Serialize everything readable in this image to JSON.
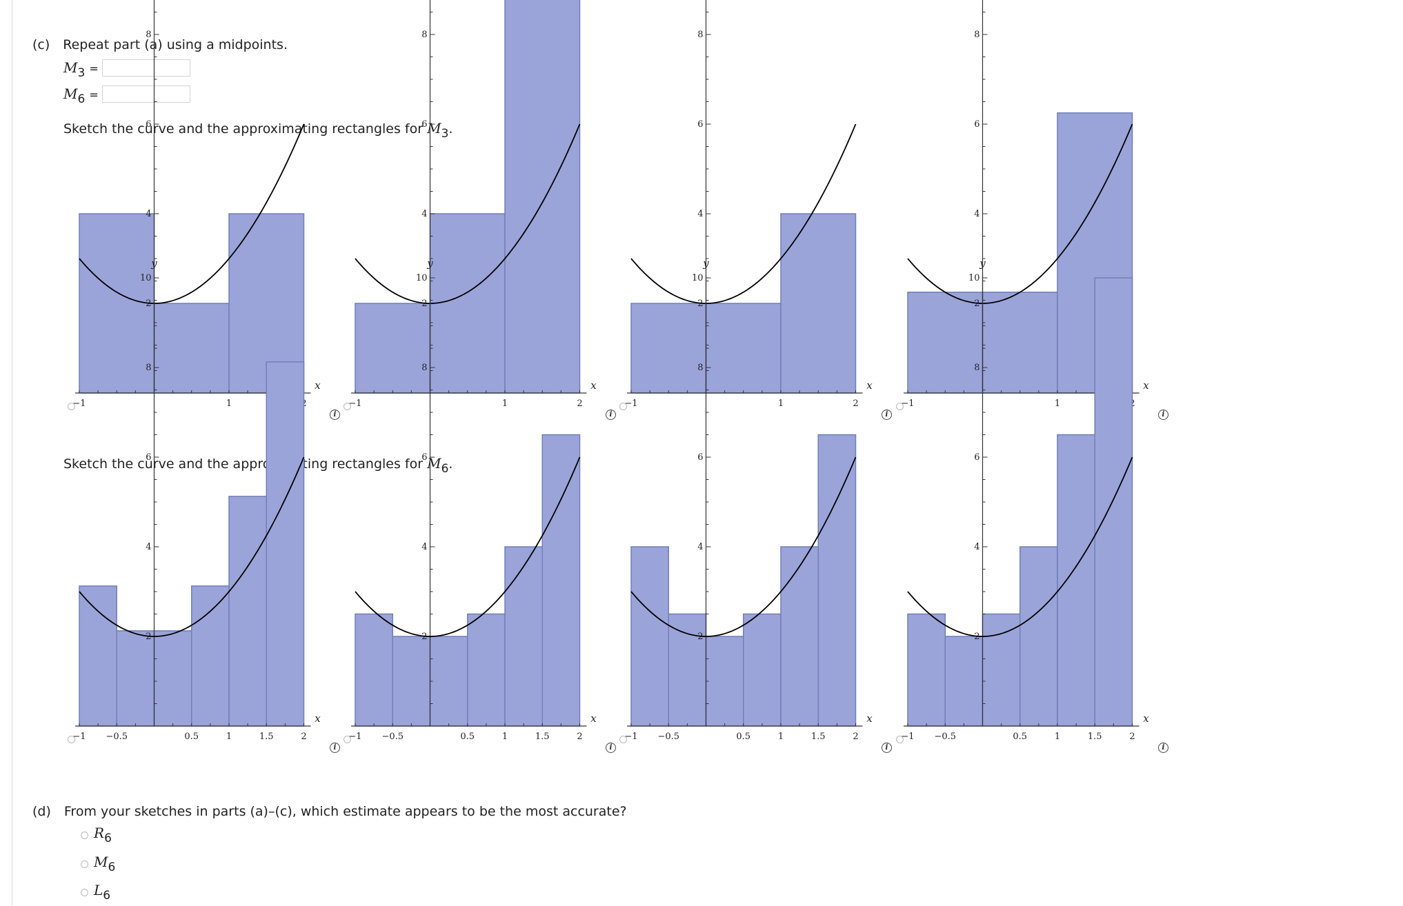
{
  "part_c": {
    "prompt": "(c) Repeat part (a) using a midpoints.",
    "m3_label": "M",
    "m3_sub": "3",
    "m3_value": "",
    "m6_label": "M",
    "m6_sub": "6",
    "m6_value": "",
    "equals": "=",
    "sketch_m3_prompt": "Sketch the curve and the approximating rectangles for ",
    "sketch_m3_var": "M",
    "sketch_m3_sub": "3",
    "sketch_m6_prompt": "Sketch the curve and the approximating rectangles for ",
    "sketch_m6_var": "M",
    "sketch_m6_sub": "6",
    "period": "."
  },
  "part_d": {
    "prompt": "(d) From your sketches in parts (a)–(c), which estimate appears to be the most accurate?",
    "options": [
      {
        "var": "R",
        "sub": "6"
      },
      {
        "var": "M",
        "sub": "6"
      },
      {
        "var": "L",
        "sub": "6"
      }
    ]
  },
  "chart_data": [
    {
      "type": "bar",
      "group": "M3",
      "option": 1,
      "x_range": [
        -1,
        2
      ],
      "y_range": [
        0,
        10
      ],
      "x_ticks": [
        "−1",
        "1",
        "2"
      ],
      "y_ticks": [
        "2",
        "4",
        "6",
        "8",
        "10"
      ],
      "xlabel": "x",
      "ylabel": "y",
      "curve": "x^2+2",
      "rect_width": 1,
      "rect_left_x": [
        -1,
        0,
        1
      ],
      "rect_heights": [
        4,
        2,
        4
      ]
    },
    {
      "type": "bar",
      "group": "M3",
      "option": 2,
      "x_range": [
        -1,
        2
      ],
      "y_range": [
        0,
        10
      ],
      "x_ticks": [
        "−1",
        "1",
        "2"
      ],
      "y_ticks": [
        "2",
        "4",
        "6",
        "8",
        "10"
      ],
      "xlabel": "x",
      "ylabel": "y",
      "curve": "x^2+2",
      "rect_width": 1,
      "rect_left_x": [
        -1,
        0,
        1
      ],
      "rect_heights": [
        2,
        4,
        10
      ]
    },
    {
      "type": "bar",
      "group": "M3",
      "option": 3,
      "x_range": [
        -1,
        2
      ],
      "y_range": [
        0,
        10
      ],
      "x_ticks": [
        "−1",
        "1",
        "2"
      ],
      "y_ticks": [
        "2",
        "4",
        "6",
        "8",
        "10"
      ],
      "xlabel": "x",
      "ylabel": "y",
      "curve": "x^2+2",
      "rect_width": 1,
      "rect_left_x": [
        -1,
        0,
        1
      ],
      "rect_heights": [
        2,
        2,
        4
      ]
    },
    {
      "type": "bar",
      "group": "M3",
      "option": 4,
      "x_range": [
        -1,
        2
      ],
      "y_range": [
        0,
        10
      ],
      "x_ticks": [
        "−1",
        "1",
        "2"
      ],
      "y_ticks": [
        "2",
        "4",
        "6",
        "8",
        "10"
      ],
      "xlabel": "x",
      "ylabel": "y",
      "curve": "x^2+2",
      "rect_width": 1,
      "rect_left_x": [
        -1,
        0,
        1
      ],
      "rect_heights": [
        2.25,
        2.25,
        6.25
      ]
    },
    {
      "type": "bar",
      "group": "M6",
      "option": 1,
      "x_range": [
        -1,
        2
      ],
      "y_range": [
        0,
        10
      ],
      "x_ticks": [
        "−1",
        "−0.5",
        "0.5",
        "1",
        "1.5",
        "2"
      ],
      "y_ticks": [
        "2",
        "4",
        "6",
        "8",
        "10"
      ],
      "xlabel": "x",
      "ylabel": "y",
      "curve": "x^2+2",
      "rect_width": 0.5,
      "rect_left_x": [
        -1,
        -0.5,
        0,
        0.5,
        1,
        1.5
      ],
      "rect_heights": [
        3.125,
        2.125,
        2.125,
        3.125,
        5.125,
        8.125
      ]
    },
    {
      "type": "bar",
      "group": "M6",
      "option": 2,
      "x_range": [
        -1,
        2
      ],
      "y_range": [
        0,
        10
      ],
      "x_ticks": [
        "−1",
        "−0.5",
        "0.5",
        "1",
        "1.5",
        "2"
      ],
      "y_ticks": [
        "2",
        "4",
        "6",
        "8",
        "10"
      ],
      "xlabel": "x",
      "ylabel": "y",
      "curve": "x^2+2",
      "rect_width": 0.5,
      "rect_left_x": [
        -1,
        -0.5,
        0,
        0.5,
        1,
        1.5
      ],
      "rect_heights": [
        2.5,
        2.0,
        2.0,
        2.5,
        4.0,
        6.5
      ]
    },
    {
      "type": "bar",
      "group": "M6",
      "option": 3,
      "x_range": [
        -1,
        2
      ],
      "y_range": [
        0,
        10
      ],
      "x_ticks": [
        "−1",
        "−0.5",
        "0.5",
        "1",
        "1.5",
        "2"
      ],
      "y_ticks": [
        "2",
        "4",
        "6",
        "8",
        "10"
      ],
      "xlabel": "x",
      "ylabel": "y",
      "curve": "x^2+2",
      "rect_width": 0.5,
      "rect_left_x": [
        -1,
        -0.5,
        0,
        0.5,
        1,
        1.5
      ],
      "rect_heights": [
        4.0,
        2.5,
        2.0,
        2.5,
        4.0,
        6.5
      ]
    },
    {
      "type": "bar",
      "group": "M6",
      "option": 4,
      "x_range": [
        -1,
        2
      ],
      "y_range": [
        0,
        10
      ],
      "x_ticks": [
        "−1",
        "−0.5",
        "0.5",
        "1",
        "1.5",
        "2"
      ],
      "y_ticks": [
        "2",
        "4",
        "6",
        "8",
        "10"
      ],
      "xlabel": "x",
      "ylabel": "y",
      "curve": "x^2+2",
      "rect_width": 0.5,
      "rect_left_x": [
        -1,
        -0.5,
        0,
        0.5,
        1,
        1.5
      ],
      "rect_heights": [
        2.5,
        2.0,
        2.5,
        4.0,
        6.5,
        10.0
      ]
    }
  ],
  "colors": {
    "rect_fill": "#9ba4d9",
    "rect_stroke": "#6f7fb8",
    "curve": "#000000",
    "axis": "#333333"
  },
  "icons": {
    "info": "info-icon",
    "radio": "radio-button"
  }
}
